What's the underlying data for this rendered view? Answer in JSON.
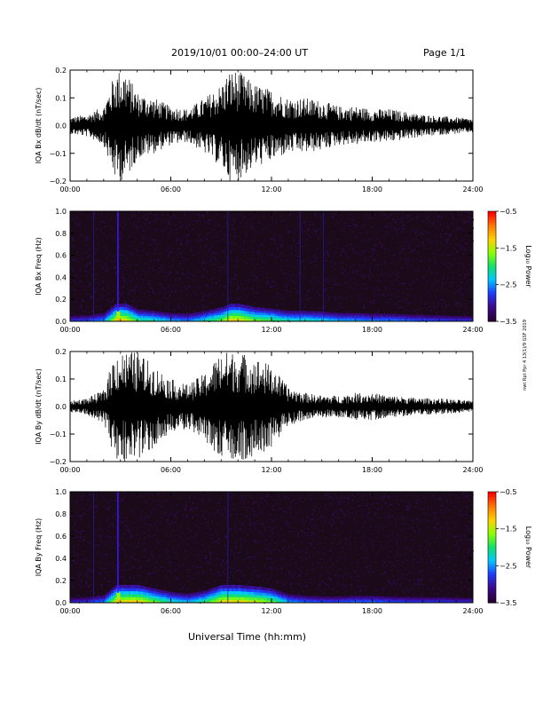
{
  "header": {
    "title": "2019/10/01   00:00–24:00 UT",
    "page": "Page 1/1"
  },
  "footer": {
    "xlabel": "Universal Time (hh:mm)",
    "side_credit": "nwt Rpt Ppr 4 13(1)/9 GSF 2019"
  },
  "colors": {
    "trace": "#000000",
    "colormap": [
      "#2a0038",
      "#3b0a8c",
      "#1f3cff",
      "#00c8ff",
      "#12e06a",
      "#8cff00",
      "#ffd000",
      "#ff7a00",
      "#ff0000"
    ]
  },
  "chart_data": [
    {
      "type": "line",
      "title": "",
      "ylabel": "IQA Bx dB/dt (nT/sec)",
      "xlabel": "",
      "xlim": [
        "00:00",
        "24:00"
      ],
      "ylim": [
        -0.2,
        0.2
      ],
      "x_ticks": [
        "00:00",
        "06:00",
        "12:00",
        "18:00",
        "24:00"
      ],
      "y_ticks": [
        "−0.2",
        "−0.1",
        "0.0",
        "0.1",
        "0.2"
      ],
      "y_tick_values": [
        -0.2,
        -0.1,
        0.0,
        0.1,
        0.2
      ],
      "envelope": {
        "x_hours": [
          0,
          1,
          2,
          2.7,
          3.0,
          3.3,
          4,
          5,
          6,
          7,
          8,
          9,
          9.5,
          10,
          11,
          12,
          13,
          14,
          15,
          16,
          17,
          18,
          19,
          20,
          21,
          22,
          23,
          24
        ],
        "amplitude": [
          0.03,
          0.04,
          0.07,
          0.2,
          0.2,
          0.2,
          0.12,
          0.1,
          0.07,
          0.06,
          0.1,
          0.15,
          0.2,
          0.2,
          0.15,
          0.13,
          0.1,
          0.1,
          0.09,
          0.07,
          0.07,
          0.06,
          0.06,
          0.05,
          0.04,
          0.035,
          0.03,
          0.025
        ]
      }
    },
    {
      "type": "heatmap",
      "title": "",
      "ylabel": "IQA Bx Freq (Hz)",
      "xlim": [
        "00:00",
        "24:00"
      ],
      "ylim": [
        0.0,
        1.0
      ],
      "x_ticks": [
        "00:00",
        "06:00",
        "12:00",
        "18:00",
        "24:00"
      ],
      "y_ticks": [
        "0.0",
        "0.2",
        "0.4",
        "0.6",
        "0.8",
        "1.0"
      ],
      "y_tick_values": [
        0.0,
        0.2,
        0.4,
        0.6,
        0.8,
        1.0
      ],
      "colorbar": {
        "label": "Log₁₀ Power",
        "range": [
          -3.5,
          -0.5
        ],
        "ticks": [
          "−0.5",
          "−1.5",
          "−2.5",
          "−3.5"
        ],
        "tick_values": [
          -0.5,
          -1.5,
          -2.5,
          -3.5
        ]
      },
      "broadband_lines_hours": [
        1.4,
        2.85,
        9.4,
        13.7,
        15.1
      ]
    },
    {
      "type": "line",
      "title": "",
      "ylabel": "IQA By dB/dt (nT/sec)",
      "xlabel": "",
      "xlim": [
        "00:00",
        "24:00"
      ],
      "ylim": [
        -0.2,
        0.2
      ],
      "x_ticks": [
        "00:00",
        "06:00",
        "12:00",
        "18:00",
        "24:00"
      ],
      "y_ticks": [
        "−0.2",
        "−0.1",
        "0.0",
        "0.1",
        "0.2"
      ],
      "y_tick_values": [
        -0.2,
        -0.1,
        0.0,
        0.1,
        0.2
      ],
      "envelope": {
        "x_hours": [
          0,
          1,
          2,
          2.7,
          3.0,
          3.3,
          4,
          5,
          6,
          7,
          8,
          9,
          9.5,
          10,
          11,
          12,
          13,
          14,
          15,
          16,
          17,
          18,
          19,
          20,
          21,
          22,
          23,
          24
        ],
        "amplitude": [
          0.02,
          0.03,
          0.06,
          0.2,
          0.2,
          0.2,
          0.2,
          0.15,
          0.1,
          0.08,
          0.12,
          0.2,
          0.2,
          0.2,
          0.18,
          0.15,
          0.07,
          0.05,
          0.04,
          0.04,
          0.05,
          0.05,
          0.04,
          0.035,
          0.03,
          0.03,
          0.025,
          0.02
        ]
      }
    },
    {
      "type": "heatmap",
      "title": "",
      "ylabel": "IQA By Freq (Hz)",
      "xlim": [
        "00:00",
        "24:00"
      ],
      "ylim": [
        0.0,
        1.0
      ],
      "x_ticks": [
        "00:00",
        "06:00",
        "12:00",
        "18:00",
        "24:00"
      ],
      "y_ticks": [
        "0.0",
        "0.2",
        "0.4",
        "0.6",
        "0.8",
        "1.0"
      ],
      "y_tick_values": [
        0.0,
        0.2,
        0.4,
        0.6,
        0.8,
        1.0
      ],
      "colorbar": {
        "label": "Log₁₀ Power",
        "range": [
          -3.5,
          -0.5
        ],
        "ticks": [
          "−0.5",
          "−1.5",
          "−2.5",
          "−3.5"
        ],
        "tick_values": [
          -0.5,
          -1.5,
          -2.5,
          -3.5
        ]
      },
      "broadband_lines_hours": [
        1.4,
        2.85,
        9.4
      ]
    }
  ]
}
